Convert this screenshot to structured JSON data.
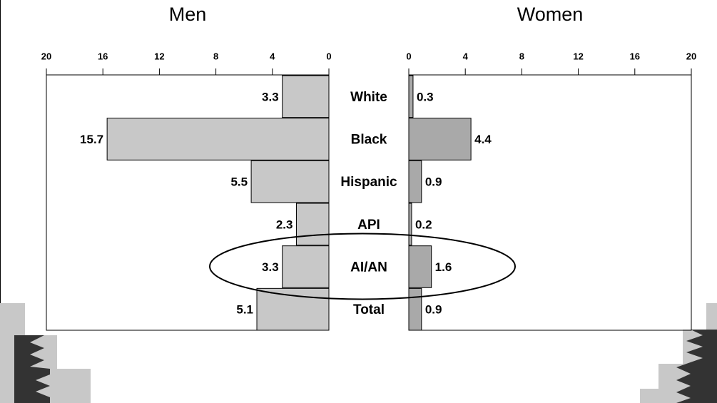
{
  "chart_data": {
    "type": "butterfly",
    "categories": [
      "White",
      "Black",
      "Hispanic",
      "API",
      "AI/AN",
      "Total"
    ],
    "series": [
      {
        "name": "Men",
        "color": "#c8c8c8",
        "values": [
          3.3,
          15.7,
          5.5,
          2.3,
          3.3,
          5.1
        ],
        "xlim": [
          20,
          0
        ],
        "xticks": [
          20,
          16,
          12,
          8,
          4,
          0
        ]
      },
      {
        "name": "Women",
        "color": "#a9a9a9",
        "values": [
          0.3,
          4.4,
          0.9,
          0.2,
          1.6,
          0.9
        ],
        "xlim": [
          0,
          20
        ],
        "xticks": [
          0,
          4,
          8,
          12,
          16,
          20
        ]
      }
    ]
  }
}
